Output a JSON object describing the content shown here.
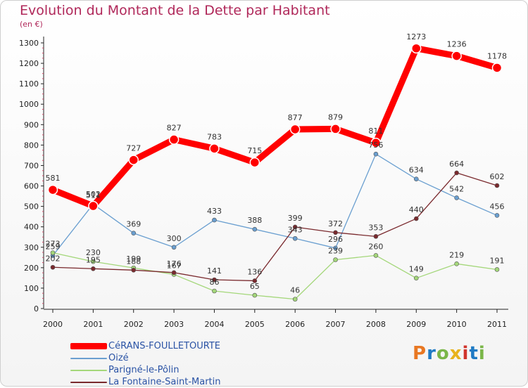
{
  "header": {
    "title": "Evolution du Montant de la Dette par Habitant",
    "subtitle": "(en €)"
  },
  "logo": {
    "text": "Proxiti",
    "colors": [
      "#e87722",
      "#1f7ac4",
      "#7ab648",
      "#e8b31d",
      "#d0342c",
      "#1f7ac4",
      "#7ab648"
    ]
  },
  "chart_data": {
    "type": "line",
    "title": "Evolution du Montant de la Dette par Habitant",
    "subtitle": "(en €)",
    "xlabel": "",
    "ylabel": "",
    "x": [
      "2000",
      "2001",
      "2002",
      "2003",
      "2004",
      "2005",
      "2006",
      "2007",
      "2008",
      "2009",
      "2010",
      "2011"
    ],
    "ylim": [
      0,
      1300
    ],
    "yticks": [
      0,
      100,
      200,
      300,
      400,
      500,
      600,
      700,
      800,
      900,
      1000,
      1100,
      1200,
      1300
    ],
    "grid": false,
    "legend_position": "bottom-left",
    "series": [
      {
        "name": "CéRANS-FOULLETOURTE",
        "color": "#ff0000",
        "values": [
          581,
          502,
          727,
          827,
          783,
          715,
          877,
          879,
          811,
          1273,
          1236,
          1178
        ]
      },
      {
        "name": "Oizé",
        "color": "#6a9fd0",
        "values": [
          259,
          511,
          369,
          300,
          433,
          388,
          343,
          296,
          756,
          634,
          542,
          456
        ]
      },
      {
        "name": "Parigné-le-Pôlin",
        "color": "#a4d77a",
        "values": [
          273,
          230,
          199,
          167,
          86,
          65,
          46,
          239,
          260,
          149,
          219,
          191
        ]
      },
      {
        "name": "La Fontaine-Saint-Martin",
        "color": "#7a2a2e",
        "values": [
          202,
          195,
          188,
          176,
          141,
          136,
          399,
          372,
          353,
          440,
          664,
          602
        ]
      }
    ]
  }
}
